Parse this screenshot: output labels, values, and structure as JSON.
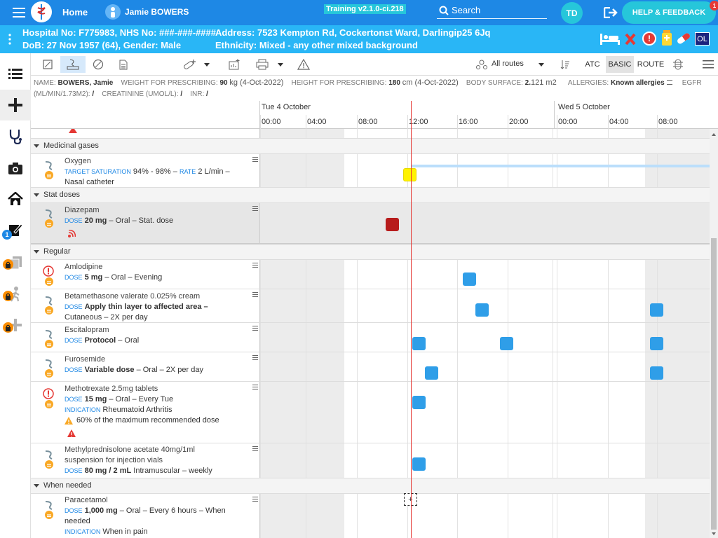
{
  "topbar": {
    "home": "Home",
    "patient": "Jamie BOWERS",
    "training": "Training v2.1.0-ci.218",
    "search": "Search",
    "user_initials": "TD",
    "help": "HELP & FEEDBACK",
    "notif": "1"
  },
  "patient": {
    "line1a": "Hospital No: F775983, NHS No: ###-###-####",
    "line1b": "Address: 7523 Kempton Rd, Cockertonst Ward, Darlingip25 6Jq",
    "line2a": "DoB: 27 Nov 1957 (64), Gender: Male",
    "line2b": "Ethnicity: Mixed - any other mixed background",
    "ol": "OL"
  },
  "nav": {
    "badge": "1"
  },
  "toolbar": {
    "routes": "All routes",
    "atc": "ATC",
    "basic": "BASIC",
    "route": "ROUTE"
  },
  "info": {
    "name_l": "NAME:",
    "name": "BOWERS, Jamie",
    "weight_l": "WEIGHT FOR PRESCRIBING:",
    "weight": "90",
    "weight_u": "kg (4-Oct-2022)",
    "height_l": "HEIGHT FOR PRESCRIBING:",
    "height": "180",
    "height_u": "cm (4-Oct-2022)",
    "bs_l": "BODY SURFACE:",
    "bs": "2.",
    "bs2": "121 m2",
    "allergy_l": "ALLERGIES:",
    "allergy": "Known allergies",
    "egfr_l": "EGFR",
    "egfr_u": "(ML/MIN/1.73M2):",
    "egfr": "/",
    "creat_l": "CREATININE (UMOL/L):",
    "creat": "/",
    "inr_l": "INR:",
    "inr": "/"
  },
  "timeline": {
    "day1": "Tue 4 October",
    "day2": "Wed 5 October",
    "ticks": [
      "00:00",
      "04:00",
      "08:00",
      "12:00",
      "16:00",
      "20:00",
      "00:00",
      "04:00",
      "08:00"
    ]
  },
  "sections": {
    "gases": "Medicinal gases",
    "stat": "Stat doses",
    "regular": "Regular",
    "prn": "When needed"
  },
  "drugs": {
    "oxygen": {
      "name": "Oxygen",
      "l1": "TARGET SATURATION",
      "v1": "94% - 98%",
      "sep": " – ",
      "l2": "RATE",
      "v2": "2 L/min",
      "tail": " –",
      "l3": "Nasal catheter"
    },
    "diazepam": {
      "name": "Diazepam",
      "l1": "DOSE",
      "v1": "20 mg",
      "rest": " – Oral – Stat. dose"
    },
    "amlodipine": {
      "name": "Amlodipine",
      "l1": "DOSE",
      "v1": "5 mg",
      "rest": " – Oral – Evening"
    },
    "betamethasone": {
      "name": "Betamethasone valerate 0.025% cream",
      "l1": "DOSE",
      "v1": "Apply thin layer to affected area –",
      "l2": "Cutaneous – 2X per day"
    },
    "escitalopram": {
      "name": "Escitalopram",
      "l1": "DOSE",
      "v1": "Protocol",
      "rest": " – Oral"
    },
    "furosemide": {
      "name": "Furosemide",
      "l1": "DOSE",
      "v1": "Variable dose",
      "rest": " – Oral – 2X per day"
    },
    "methotrexate": {
      "name": "Methotrexate 2.5mg tablets",
      "l1": "DOSE",
      "v1": "15 mg",
      "rest": " – Oral – Every Tue",
      "l2": "INDICATION",
      "v2": "Rheumatoid Arthritis",
      "warn": "60% of the maximum recommended dose"
    },
    "methylpred": {
      "name": "Methylprednisolone acetate 40mg/1ml",
      "name2": "suspension for injection vials",
      "l1": "DOSE",
      "v1": "80 mg / 2 mL",
      "rest": " Intramuscular – weekly"
    },
    "paracetamol": {
      "name": "Paracetamol",
      "l1": "DOSE",
      "v1": "1,000 mg",
      "rest": " – Oral – Every 6 hours – When",
      "l2": "needed",
      "l3": "INDICATION",
      "v3": "When in pain",
      "plus": "+"
    }
  }
}
